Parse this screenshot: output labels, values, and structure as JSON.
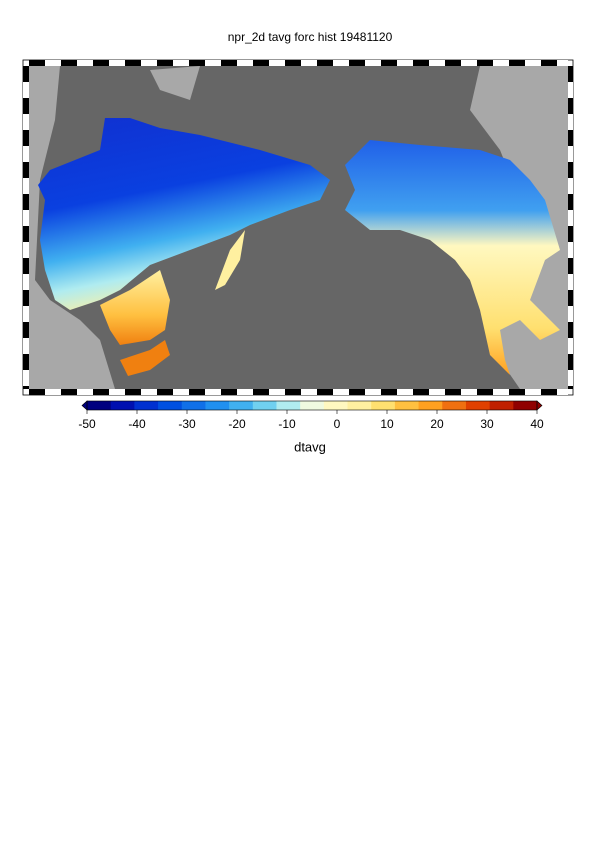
{
  "title": "npr_2d tavg forc hist 19481120",
  "colorbar": {
    "label": "dtavg",
    "lim": [
      -50,
      40
    ],
    "ticks": [
      -50,
      -40,
      -30,
      -20,
      -10,
      0,
      10,
      20,
      30,
      40
    ],
    "colors": [
      "#00007f",
      "#0010b0",
      "#0030d0",
      "#0050e0",
      "#1070e8",
      "#2090f0",
      "#40b0f0",
      "#70d0f0",
      "#b0ecf0",
      "#f0fae0",
      "#fff8c0",
      "#fff0a0",
      "#ffe070",
      "#ffc040",
      "#ffa020",
      "#f07010",
      "#e04000",
      "#c02000",
      "#900000"
    ]
  }
}
